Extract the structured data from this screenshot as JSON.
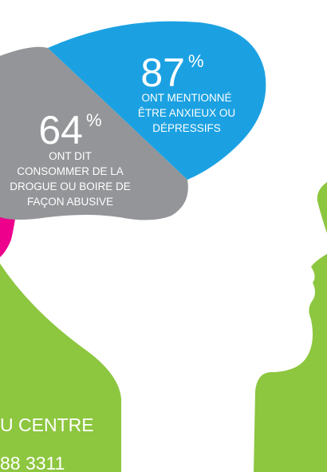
{
  "stats": [
    {
      "value": "87",
      "unit": "%",
      "lines": [
        "ONT MENTIONNÉ",
        "ÊTRE ANXIEUX OU",
        "DÉPRESSIFS"
      ]
    },
    {
      "value": "64",
      "unit": "%",
      "lines": [
        "ONT DIT",
        "CONSOMMER DE LA",
        "DROGUE OU BOIRE DE",
        "FAÇON ABUSIVE"
      ]
    }
  ],
  "footer": {
    "line1": "U CENTRE",
    "line2": "88 3311"
  }
}
